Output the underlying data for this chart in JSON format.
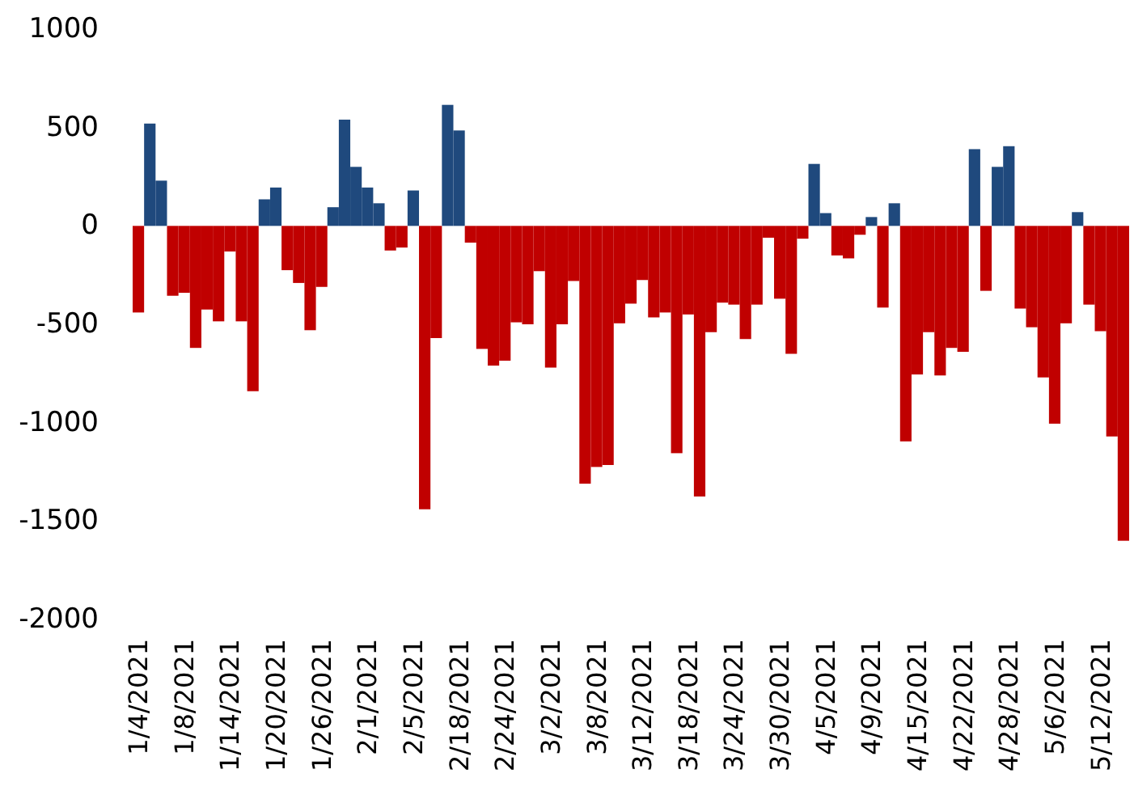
{
  "chart_data": {
    "type": "bar",
    "categories": [
      "1/4/2021",
      null,
      null,
      null,
      "1/8/2021",
      null,
      null,
      null,
      "1/14/2021",
      null,
      null,
      null,
      "1/20/2021",
      null,
      null,
      null,
      "1/26/2021",
      null,
      null,
      null,
      "2/1/2021",
      null,
      null,
      null,
      "2/5/2021",
      null,
      null,
      null,
      "2/18/2021",
      null,
      null,
      null,
      "2/24/2021",
      null,
      null,
      null,
      "3/2/2021",
      null,
      null,
      null,
      "3/8/2021",
      null,
      null,
      null,
      "3/12/2021",
      null,
      null,
      null,
      "3/18/2021",
      null,
      null,
      null,
      "3/24/2021",
      null,
      null,
      null,
      "3/30/2021",
      null,
      null,
      null,
      "4/5/2021",
      null,
      null,
      null,
      "4/9/2021",
      null,
      null,
      null,
      "4/15/2021",
      null,
      null,
      null,
      "4/22/2021",
      null,
      null,
      null,
      "4/28/2021",
      null,
      null,
      null,
      "5/6/2021",
      null,
      null,
      null,
      "5/12/2021",
      null,
      null
    ],
    "values": [
      -440,
      520,
      230,
      -355,
      -340,
      -620,
      -425,
      -485,
      -130,
      -485,
      -840,
      135,
      195,
      -225,
      -290,
      -530,
      -310,
      95,
      540,
      300,
      195,
      115,
      -125,
      -110,
      180,
      -1440,
      -570,
      615,
      485,
      -85,
      -625,
      -710,
      -685,
      -490,
      -500,
      -230,
      -720,
      -500,
      -280,
      -1310,
      -1225,
      -1215,
      -495,
      -395,
      -275,
      -465,
      -440,
      -1155,
      -450,
      -1375,
      -540,
      -390,
      -400,
      -575,
      -400,
      -60,
      -370,
      -650,
      -65,
      315,
      65,
      -150,
      -165,
      -45,
      45,
      -415,
      115,
      -1095,
      -755,
      -540,
      -760,
      -620,
      -640,
      390,
      -330,
      300,
      405,
      -420,
      -515,
      -770,
      -1005,
      -495,
      70,
      -400,
      -535,
      -1070,
      -1600
    ],
    "colors": [
      "#c00000",
      "#1f497d",
      "#1f497d",
      "#c00000",
      "#c00000",
      "#c00000",
      "#c00000",
      "#c00000",
      "#c00000",
      "#c00000",
      "#c00000",
      "#1f497d",
      "#1f497d",
      "#c00000",
      "#c00000",
      "#c00000",
      "#c00000",
      "#1f497d",
      "#1f497d",
      "#1f497d",
      "#1f497d",
      "#1f497d",
      "#c00000",
      "#c00000",
      "#1f497d",
      "#c00000",
      "#c00000",
      "#1f497d",
      "#1f497d",
      "#c00000",
      "#c00000",
      "#c00000",
      "#c00000",
      "#c00000",
      "#c00000",
      "#c00000",
      "#c00000",
      "#c00000",
      "#c00000",
      "#c00000",
      "#c00000",
      "#c00000",
      "#c00000",
      "#c00000",
      "#c00000",
      "#c00000",
      "#c00000",
      "#c00000",
      "#c00000",
      "#c00000",
      "#c00000",
      "#c00000",
      "#c00000",
      "#c00000",
      "#c00000",
      "#c00000",
      "#c00000",
      "#c00000",
      "#c00000",
      "#1f497d",
      "#1f497d",
      "#c00000",
      "#c00000",
      "#c00000",
      "#1f497d",
      "#c00000",
      "#1f497d",
      "#c00000",
      "#c00000",
      "#c00000",
      "#c00000",
      "#c00000",
      "#c00000",
      "#1f497d",
      "#c00000",
      "#1f497d",
      "#1f497d",
      "#c00000",
      "#c00000",
      "#c00000",
      "#c00000",
      "#c00000",
      "#1f497d",
      "#c00000",
      "#c00000",
      "#c00000",
      "#c00000"
    ],
    "ylim": [
      -2000,
      1000
    ],
    "yticks": [
      -2000,
      -1500,
      -1000,
      -500,
      0,
      500,
      1000
    ]
  }
}
